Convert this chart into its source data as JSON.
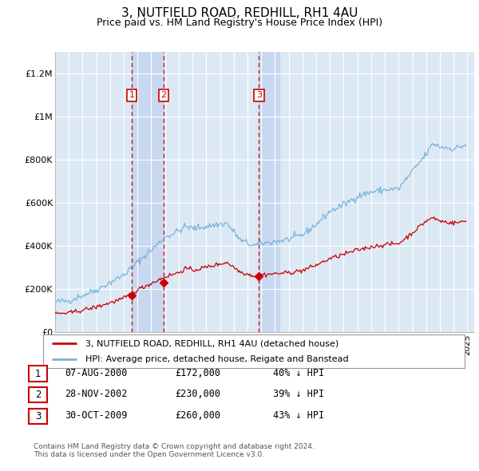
{
  "title": "3, NUTFIELD ROAD, REDHILL, RH1 4AU",
  "subtitle": "Price paid vs. HM Land Registry's House Price Index (HPI)",
  "title_fontsize": 11,
  "subtitle_fontsize": 9,
  "background_color": "#ffffff",
  "plot_bg_color": "#dce9f5",
  "grid_color": "#ffffff",
  "hpi_line_color": "#7ab4d8",
  "price_line_color": "#cc0000",
  "shade_color": "#c8d8f0",
  "ylim": [
    0,
    1300000
  ],
  "yticks": [
    0,
    200000,
    400000,
    600000,
    800000,
    1000000,
    1200000
  ],
  "ytick_labels": [
    "£0",
    "£200K",
    "£400K",
    "£600K",
    "£800K",
    "£1M",
    "£1.2M"
  ],
  "xlim_start": 1995.0,
  "xlim_end": 2025.5,
  "transactions": [
    {
      "num": 1,
      "date": "07-AUG-2000",
      "price": 172000,
      "hpi_pct": "40%",
      "year_x": 2000.58
    },
    {
      "num": 2,
      "date": "28-NOV-2002",
      "price": 230000,
      "hpi_pct": "39%",
      "year_x": 2002.91
    },
    {
      "num": 3,
      "date": "30-OCT-2009",
      "price": 260000,
      "hpi_pct": "43%",
      "year_x": 2009.83
    }
  ],
  "legend_label_red": "3, NUTFIELD ROAD, REDHILL, RH1 4AU (detached house)",
  "legend_label_blue": "HPI: Average price, detached house, Reigate and Banstead",
  "footer1": "Contains HM Land Registry data © Crown copyright and database right 2024.",
  "footer2": "This data is licensed under the Open Government Licence v3.0."
}
